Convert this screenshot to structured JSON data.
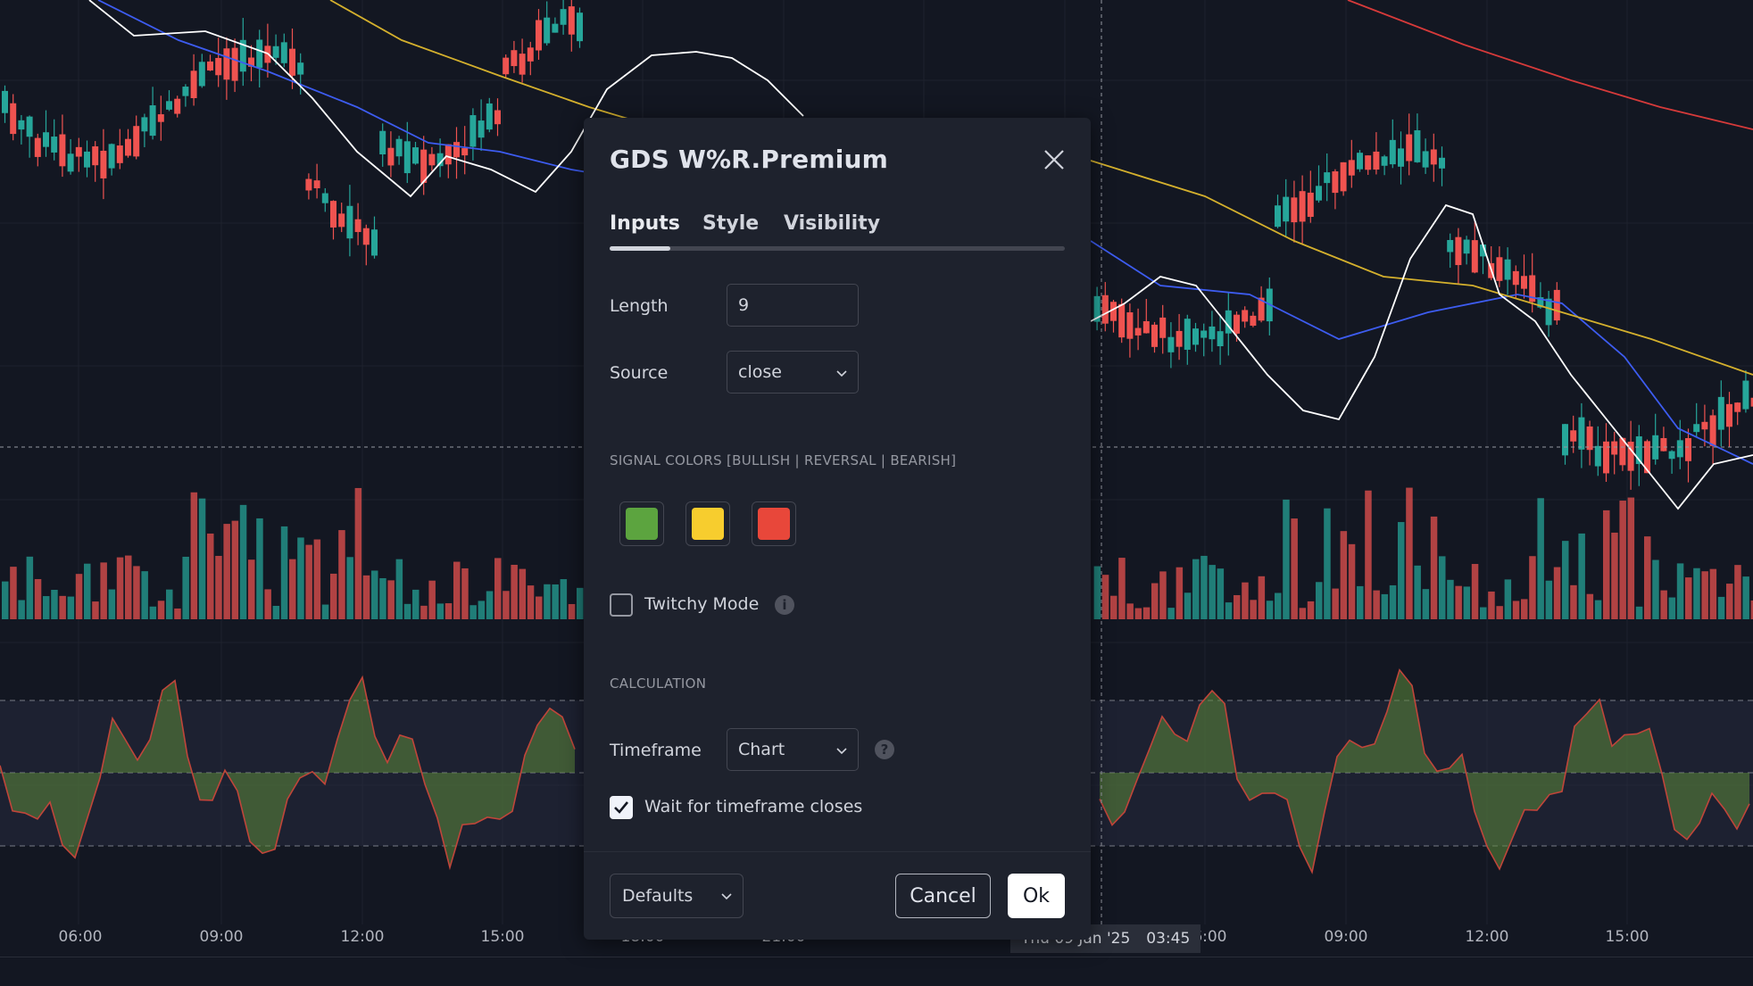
{
  "dialog": {
    "title": "GDS W%R.Premium",
    "tabs": [
      {
        "label": "Inputs",
        "active": true
      },
      {
        "label": "Style",
        "active": false
      },
      {
        "label": "Visibility",
        "active": false
      }
    ],
    "inputs": {
      "length_label": "Length",
      "length_value": "9",
      "source_label": "Source",
      "source_value": "close",
      "signal_colors_title": "SIGNAL COLORS [BULLISH | REVERSAL | BEARISH]",
      "signal_colors": [
        {
          "name": "bullish",
          "color": "#5ca43f"
        },
        {
          "name": "reversal",
          "color": "#f7cd2e"
        },
        {
          "name": "bearish",
          "color": "#e8473a"
        }
      ],
      "twitchy_label": "Twitchy Mode",
      "twitchy_checked": false,
      "calculation_title": "CALCULATION",
      "timeframe_label": "Timeframe",
      "timeframe_value": "Chart",
      "wait_label": "Wait for timeframe closes",
      "wait_checked": true
    },
    "footer": {
      "defaults_label": "Defaults",
      "cancel_label": "Cancel",
      "ok_label": "Ok"
    }
  },
  "chart": {
    "time_axis_left": [
      "06:00",
      "09:00",
      "12:00",
      "15:00",
      "18:00",
      "21:00"
    ],
    "time_axis_right": [
      "06:00",
      "09:00",
      "12:00",
      "15:00"
    ],
    "crosshair_date": "Thu 09 Jan '25",
    "crosshair_time": "03:45",
    "colors": {
      "background": "#131722",
      "bull": "#26a69a",
      "bear": "#ef5350",
      "ma_white": "#ffffff",
      "ma_blue": "#3d5cf0",
      "ma_yellow": "#d4b02d",
      "ma_red": "#d63a3a"
    }
  }
}
